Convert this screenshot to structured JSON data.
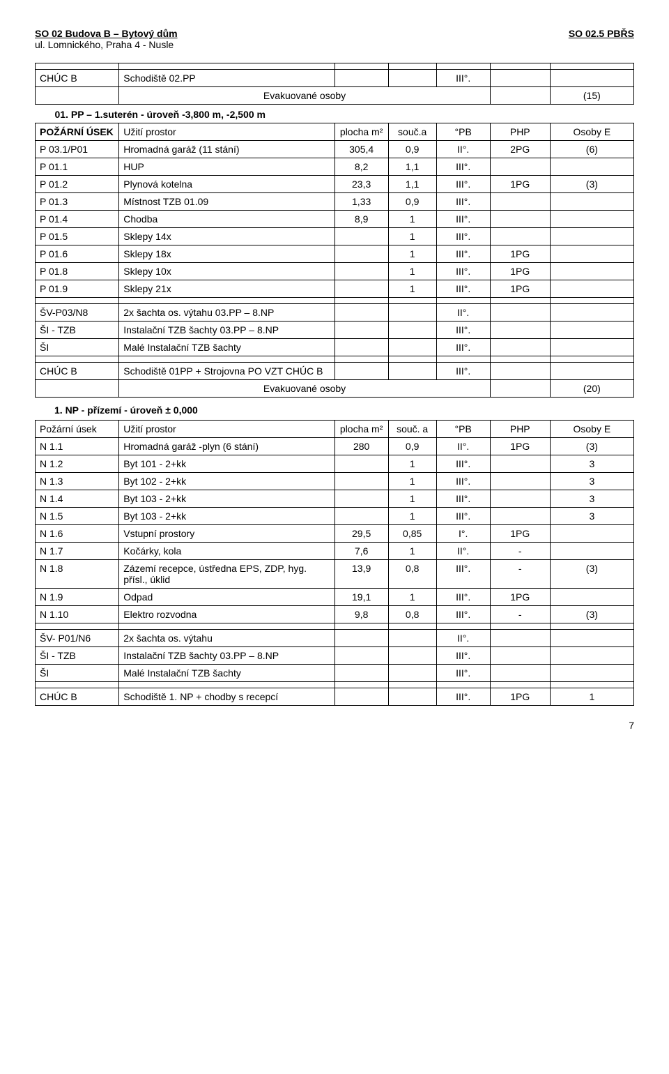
{
  "header": {
    "left": "SO 02 Budova B – Bytový dům",
    "right": "SO 02.5 PBŘS",
    "sub": "ul. Lomnického, Praha 4 - Nusle"
  },
  "section1": {
    "chuc_label": "CHÚC B",
    "chuc_text": "Schodiště 02.PP",
    "chuc_pb": "III°.",
    "evac_text": "Evakuované osoby",
    "evac_count": "(15)",
    "title_line": "01. PP – 1.suterén - úroveň  -3,800 m, -2,500 m",
    "head": {
      "c0": "POŽÁRNÍ ÚSEK",
      "c1": "Užití prostor",
      "c2": "plocha m²",
      "c3": "souč.a",
      "c4": "°PB",
      "c5": "PHP",
      "c6": "Osoby E"
    },
    "rows": [
      [
        "P 03.1/P01",
        "Hromadná garáž (11 stání)",
        "305,4",
        "0,9",
        "II°.",
        "2PG",
        "(6)"
      ],
      [
        "P 01.1",
        "HUP",
        "8,2",
        "1,1",
        "III°.",
        "",
        ""
      ],
      [
        "P 01.2",
        "Plynová kotelna",
        "23,3",
        "1,1",
        "III°.",
        "1PG",
        "(3)"
      ],
      [
        "P 01.3",
        "Místnost TZB 01.09",
        "1,33",
        "0,9",
        "III°.",
        "",
        ""
      ],
      [
        "P 01.4",
        "Chodba",
        "8,9",
        "1",
        "III°.",
        "",
        ""
      ],
      [
        "P 01.5",
        "Sklepy 14x",
        "",
        "1",
        "III°.",
        "",
        ""
      ],
      [
        "P 01.6",
        "Sklepy 18x",
        "",
        "1",
        "III°.",
        "1PG",
        ""
      ],
      [
        "P 01.8",
        "Sklepy 10x",
        "",
        "1",
        "III°.",
        "1PG",
        ""
      ],
      [
        "P 01.9",
        "Sklepy 21x",
        "",
        "1",
        "III°.",
        "1PG",
        ""
      ]
    ],
    "shafts": [
      [
        "ŠV-P03/N8",
        "2x šachta os. výtahu 03.PP – 8.NP",
        "",
        "",
        "II°.",
        "",
        ""
      ],
      [
        "ŠI - TZB",
        "Instalační TZB šachty 03.PP – 8.NP",
        "",
        "",
        "III°.",
        "",
        ""
      ],
      [
        "ŠI",
        "Malé Instalační TZB šachty",
        "",
        "",
        "III°.",
        "",
        ""
      ]
    ],
    "chuc2": [
      "CHÚC B",
      "Schodiště 01PP + Strojovna PO VZT CHÚC B",
      "",
      "",
      "III°.",
      "",
      ""
    ],
    "evac2_text": "Evakuované osoby",
    "evac2_count": "(20)"
  },
  "section2": {
    "title_line": "1. NP - přízemí - úroveň ± 0,000",
    "head": {
      "c0": "Požární úsek",
      "c1": "Užití prostor",
      "c2": "plocha m²",
      "c3": "souč. a",
      "c4": "°PB",
      "c5": "PHP",
      "c6": "Osoby E"
    },
    "rows": [
      [
        "N 1.1",
        "Hromadná garáž -plyn (6 stání)",
        "280",
        "0,9",
        "II°.",
        "1PG",
        "(3)"
      ],
      [
        "N 1.2",
        "Byt 101 - 2+kk",
        "",
        "1",
        "III°.",
        "",
        "3"
      ],
      [
        "N 1.3",
        "Byt 102 - 2+kk",
        "",
        "1",
        "III°.",
        "",
        "3"
      ],
      [
        "N 1.4",
        "Byt 103 - 2+kk",
        "",
        "1",
        "III°.",
        "",
        "3"
      ],
      [
        "N 1.5",
        "Byt 103 - 2+kk",
        "",
        "1",
        "III°.",
        "",
        "3"
      ],
      [
        "N 1.6",
        "Vstupní prostory",
        "29,5",
        "0,85",
        "I°.",
        "1PG",
        ""
      ],
      [
        "N 1.7",
        "Kočárky, kola",
        "7,6",
        "1",
        "II°.",
        "-",
        ""
      ],
      [
        "N 1.8",
        "Zázemí recepce, ústředna EPS, ZDP, hyg. přísl., úklid",
        "13,9",
        "0,8",
        "III°.",
        "-",
        "(3)"
      ],
      [
        "N 1.9",
        "Odpad",
        "19,1",
        "1",
        "III°.",
        "1PG",
        ""
      ],
      [
        "N 1.10",
        "Elektro rozvodna",
        "9,8",
        "0,8",
        "III°.",
        "-",
        "(3)"
      ]
    ],
    "shafts": [
      [
        "ŠV- P01/N6",
        "2x šachta os. výtahu",
        "",
        "",
        "II°.",
        "",
        ""
      ],
      [
        "ŠI - TZB",
        "Instalační TZB šachty 03.PP – 8.NP",
        "",
        "",
        "III°.",
        "",
        ""
      ],
      [
        "ŠI",
        "Malé Instalační TZB šachty",
        "",
        "",
        "III°.",
        "",
        ""
      ]
    ],
    "chuc": [
      "CHÚC B",
      "Schodiště 1. NP + chodby s recepcí",
      "",
      "",
      "III°.",
      "1PG",
      "1"
    ]
  },
  "pagenum": "7"
}
